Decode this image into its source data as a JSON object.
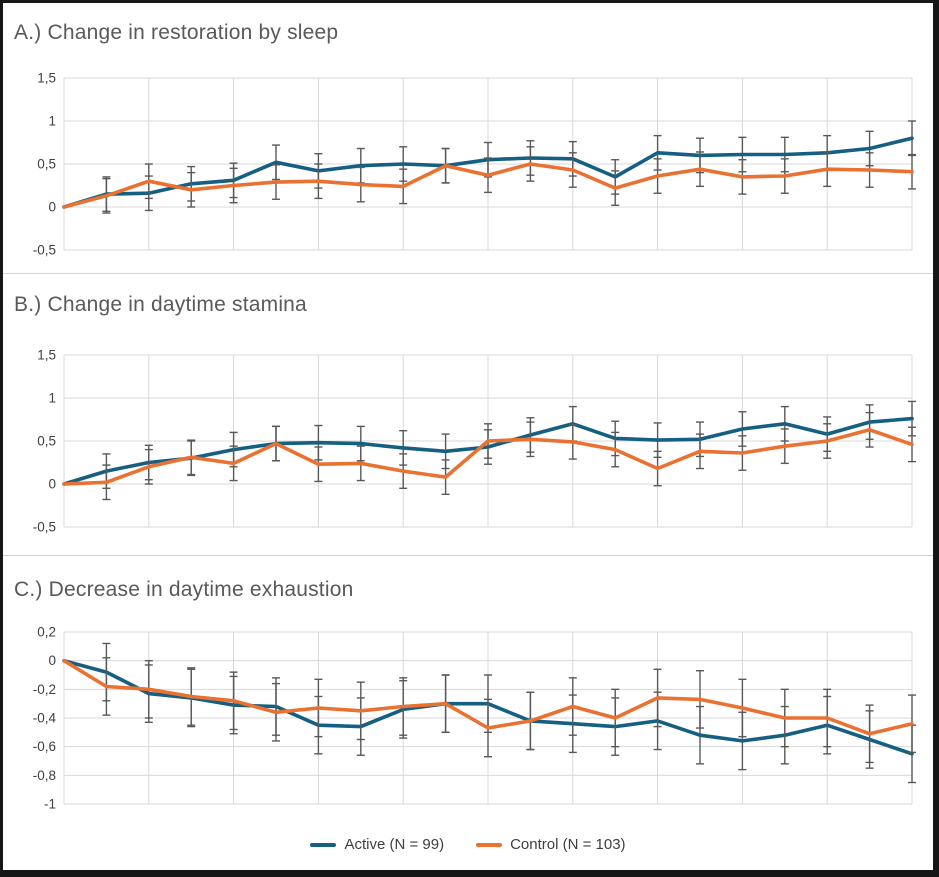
{
  "colors": {
    "active": "#156082",
    "control": "#E97132",
    "gridline": "#D9D9D9",
    "error_bar": "#595959",
    "title_text": "#595959",
    "tick_text": "#404040",
    "legend_text": "#3F3F3F",
    "border": "#161616"
  },
  "legend": {
    "items": [
      {
        "label": "Active (N = 99)",
        "series": "active"
      },
      {
        "label": "Control (N = 103)",
        "series": "control"
      }
    ]
  },
  "chart_data": [
    {
      "id": "A",
      "type": "line",
      "title": "A.) Change in restoration by sleep",
      "xlabel": "",
      "ylabel": "",
      "ylim": [
        -0.5,
        1.5
      ],
      "ytick_values": [
        1.5,
        1,
        0.5,
        0,
        -0.5
      ],
      "ytick_labels": [
        "1,5",
        "1",
        "0,5",
        "0",
        "-0,5"
      ],
      "x_gridline_every": 2,
      "grid": true,
      "error_half": 0.2,
      "series": [
        {
          "name": "Active (N = 99)",
          "color_key": "active",
          "values": [
            0,
            0.15,
            0.16,
            0.27,
            0.31,
            0.52,
            0.42,
            0.48,
            0.5,
            0.48,
            0.55,
            0.57,
            0.56,
            0.35,
            0.63,
            0.6,
            0.61,
            0.61,
            0.63,
            0.68,
            0.8
          ]
        },
        {
          "name": "Control (N = 103)",
          "color_key": "control",
          "values": [
            0,
            0.13,
            0.3,
            0.2,
            0.25,
            0.29,
            0.3,
            0.26,
            0.24,
            0.48,
            0.37,
            0.5,
            0.43,
            0.22,
            0.36,
            0.44,
            0.35,
            0.36,
            0.44,
            0.43,
            0.41
          ]
        }
      ]
    },
    {
      "id": "B",
      "type": "line",
      "title": "B.) Change in daytime stamina",
      "xlabel": "",
      "ylabel": "",
      "ylim": [
        -0.5,
        1.5
      ],
      "ytick_values": [
        1.5,
        1,
        0.5,
        0,
        -0.5
      ],
      "ytick_labels": [
        "1,5",
        "1",
        "0,5",
        "0",
        "-0,5"
      ],
      "x_gridline_every": 2,
      "grid": true,
      "error_half": 0.2,
      "series": [
        {
          "name": "Active (N = 99)",
          "color_key": "active",
          "values": [
            0,
            0.15,
            0.25,
            0.3,
            0.4,
            0.47,
            0.48,
            0.47,
            0.42,
            0.38,
            0.43,
            0.57,
            0.7,
            0.53,
            0.51,
            0.52,
            0.64,
            0.7,
            0.58,
            0.72,
            0.76
          ]
        },
        {
          "name": "Control (N = 103)",
          "color_key": "control",
          "values": [
            0,
            0.02,
            0.2,
            0.31,
            0.24,
            0.47,
            0.23,
            0.24,
            0.15,
            0.08,
            0.5,
            0.52,
            0.49,
            0.4,
            0.18,
            0.38,
            0.36,
            0.44,
            0.5,
            0.63,
            0.46
          ]
        }
      ]
    },
    {
      "id": "C",
      "type": "line",
      "title": "C.) Decrease in daytime exhaustion",
      "xlabel": "",
      "ylabel": "",
      "ylim": [
        -1,
        0.2
      ],
      "ytick_values": [
        0.2,
        0,
        -0.2,
        -0.4,
        -0.6,
        -0.8,
        -1
      ],
      "ytick_labels": [
        "0,2",
        "0",
        "-0,2",
        "-0,4",
        "-0,6",
        "-0,8",
        "-1"
      ],
      "x_gridline_every": 2,
      "grid": true,
      "error_half": 0.2,
      "series": [
        {
          "name": "Active (N = 99)",
          "color_key": "active",
          "values": [
            0,
            -0.08,
            -0.23,
            -0.26,
            -0.31,
            -0.32,
            -0.45,
            -0.46,
            -0.34,
            -0.3,
            -0.3,
            -0.42,
            -0.44,
            -0.46,
            -0.42,
            -0.52,
            -0.56,
            -0.52,
            -0.45,
            -0.55,
            -0.65
          ]
        },
        {
          "name": "Control (N = 103)",
          "color_key": "control",
          "values": [
            0,
            -0.18,
            -0.2,
            -0.25,
            -0.28,
            -0.36,
            -0.33,
            -0.35,
            -0.32,
            -0.3,
            -0.47,
            -0.42,
            -0.32,
            -0.4,
            -0.26,
            -0.27,
            -0.33,
            -0.4,
            -0.4,
            -0.51,
            -0.44
          ]
        }
      ]
    }
  ]
}
